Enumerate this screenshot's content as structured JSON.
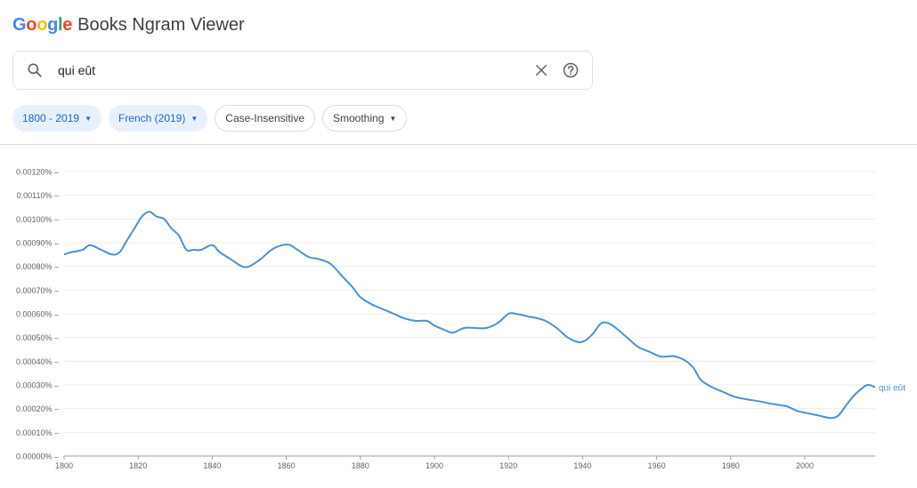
{
  "header": {
    "logo_letters": [
      {
        "ch": "G",
        "color": "#4285f4"
      },
      {
        "ch": "o",
        "color": "#ea4335"
      },
      {
        "ch": "o",
        "color": "#fbbc05"
      },
      {
        "ch": "g",
        "color": "#4285f4"
      },
      {
        "ch": "l",
        "color": "#34a853"
      },
      {
        "ch": "e",
        "color": "#ea4335"
      }
    ],
    "app_title": "Books Ngram Viewer"
  },
  "search": {
    "value": "qui eût"
  },
  "filters": {
    "year_range": "1800 - 2019",
    "corpus": "French (2019)",
    "case": "Case-Insensitive",
    "smoothing": "Smoothing"
  },
  "chart_data": {
    "type": "line",
    "title": "",
    "xlabel": "",
    "ylabel": "",
    "xlim": [
      1800,
      2019
    ],
    "ylim": [
      0,
      0.0012
    ],
    "x_ticks": [
      1800,
      1820,
      1840,
      1860,
      1880,
      1900,
      1920,
      1940,
      1960,
      1980,
      2000
    ],
    "y_ticks": [
      "0.00000%",
      "0.00010%",
      "0.00020%",
      "0.00030%",
      "0.00040%",
      "0.00050%",
      "0.00060%",
      "0.00070%",
      "0.00080%",
      "0.00090%",
      "0.00100%",
      "0.00110%",
      "0.00120%"
    ],
    "grid": true,
    "series": [
      {
        "name": "qui eût",
        "color": "#4a90d9",
        "x": [
          1800,
          1802,
          1805,
          1807,
          1810,
          1813,
          1815,
          1817,
          1819,
          1821,
          1823,
          1825,
          1827,
          1829,
          1831,
          1833,
          1835,
          1837,
          1840,
          1842,
          1845,
          1848,
          1850,
          1853,
          1856,
          1859,
          1861,
          1863,
          1866,
          1869,
          1872,
          1875,
          1878,
          1880,
          1883,
          1886,
          1889,
          1892,
          1895,
          1898,
          1900,
          1903,
          1905,
          1908,
          1911,
          1914,
          1917,
          1920,
          1922,
          1925,
          1928,
          1930,
          1933,
          1936,
          1939,
          1941,
          1943,
          1945,
          1947,
          1949,
          1952,
          1955,
          1958,
          1961,
          1963,
          1965,
          1968,
          1970,
          1972,
          1975,
          1978,
          1981,
          1984,
          1988,
          1991,
          1995,
          1998,
          2001,
          2004,
          2007,
          2009,
          2011,
          2013,
          2015,
          2017,
          2019
        ],
        "values": [
          0.00085,
          0.00086,
          0.00087,
          0.00089,
          0.00087,
          0.00085,
          0.00086,
          0.00091,
          0.00096,
          0.00101,
          0.00103,
          0.00101,
          0.001,
          0.00096,
          0.00093,
          0.00087,
          0.00087,
          0.00087,
          0.00089,
          0.00086,
          0.00083,
          0.0008,
          0.0008,
          0.00083,
          0.00087,
          0.00089,
          0.00089,
          0.00087,
          0.00084,
          0.00083,
          0.00081,
          0.00076,
          0.00071,
          0.00067,
          0.00064,
          0.00062,
          0.0006,
          0.00058,
          0.00057,
          0.00057,
          0.00055,
          0.00053,
          0.00052,
          0.00054,
          0.00054,
          0.00054,
          0.00056,
          0.0006,
          0.0006,
          0.00059,
          0.00058,
          0.00057,
          0.00054,
          0.0005,
          0.00048,
          0.00049,
          0.00052,
          0.00056,
          0.00056,
          0.00054,
          0.0005,
          0.00046,
          0.00044,
          0.00042,
          0.00042,
          0.00042,
          0.0004,
          0.00037,
          0.00032,
          0.00029,
          0.00027,
          0.00025,
          0.00024,
          0.00023,
          0.00022,
          0.00021,
          0.00019,
          0.00018,
          0.00017,
          0.00016,
          0.00017,
          0.00021,
          0.00025,
          0.00028,
          0.0003,
          0.00029
        ]
      }
    ]
  }
}
